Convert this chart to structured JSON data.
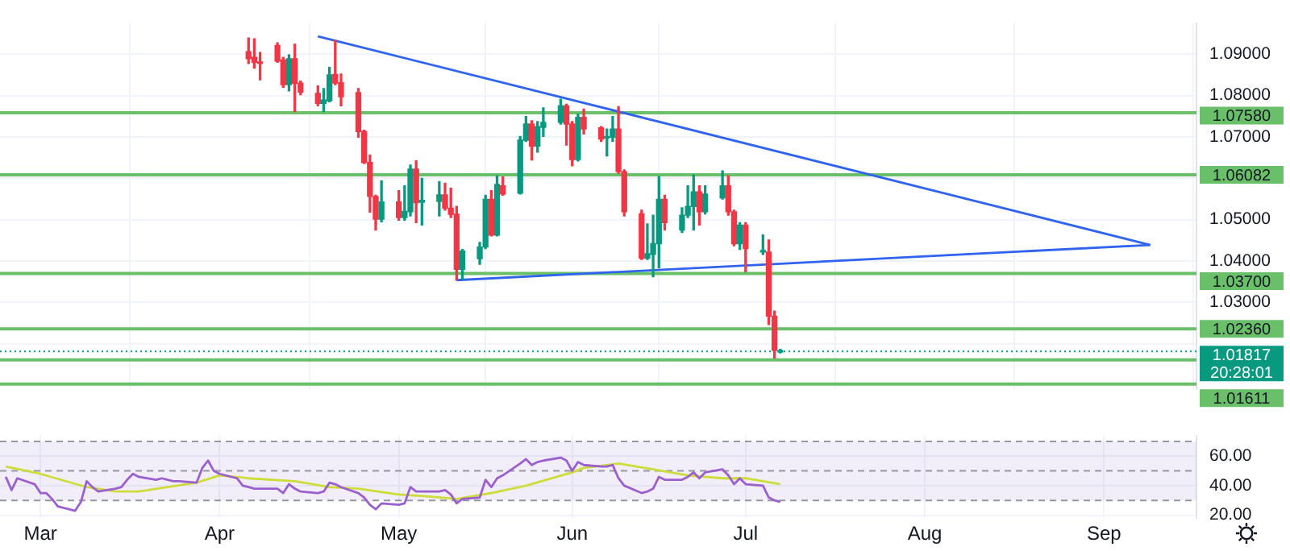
{
  "chart_data": [
    {
      "type": "candlestick",
      "xlim": [
        "--02-22",
        "--09-17"
      ],
      "xticks": [
        {
          "value": "--03-01",
          "label": null
        },
        {
          "value": "--04-01",
          "label": null
        },
        {
          "value": "--05-02",
          "label": null
        },
        {
          "value": "--06-01",
          "label": null
        },
        {
          "value": "--07-01",
          "label": null
        },
        {
          "value": "--08-01",
          "label": null
        },
        {
          "value": "--09-01",
          "label": null
        }
      ],
      "ylim": [
        1.009,
        1.0975
      ],
      "yticks": [
        {
          "value": 1.03,
          "label": "1.03000"
        },
        {
          "value": 1.04,
          "label": "1.04000"
        },
        {
          "value": 1.05,
          "label": "1.05000"
        },
        {
          "value": 1.06,
          "label": null
        },
        {
          "value": 1.07,
          "label": "1.07000"
        },
        {
          "value": 1.08,
          "label": "1.08000"
        },
        {
          "value": 1.09,
          "label": "1.09000"
        },
        {
          "value": 1.02,
          "label": null
        }
      ],
      "tick_labels": "y",
      "grid": true,
      "x": [
        "--04-06",
        "--04-07",
        "--04-08",
        "--04-11",
        "--04-12",
        "--04-13",
        "--04-14",
        "--04-15",
        "--04-18",
        "--04-19",
        "--04-20",
        "--04-21",
        "--04-22",
        "--04-25",
        "--04-26",
        "--04-27",
        "--04-28",
        "--04-29",
        "--05-02",
        "--05-03",
        "--05-04",
        "--05-05",
        "--05-06",
        "--05-09",
        "--05-10",
        "--05-11",
        "--05-12",
        "--05-13",
        "--05-16",
        "--05-17",
        "--05-18",
        "--05-19",
        "--05-20",
        "--05-23",
        "--05-24",
        "--05-25",
        "--05-26",
        "--05-27",
        "--05-30",
        "--05-31",
        "--06-01",
        "--06-02",
        "--06-03",
        "--06-06",
        "--06-07",
        "--06-08",
        "--06-09",
        "--06-10",
        "--06-13",
        "--06-14",
        "--06-15",
        "--06-16",
        "--06-17",
        "--06-20",
        "--06-21",
        "--06-22",
        "--06-23",
        "--06-24",
        "--06-27",
        "--06-28",
        "--06-29",
        "--06-30",
        "--07-01",
        "--07-04",
        "--07-05",
        "--07-06",
        "--07-07"
      ],
      "ohlc": [
        [
          1.0906,
          1.0939,
          1.0877,
          1.0889
        ],
        [
          1.0892,
          1.0937,
          1.0866,
          1.088
        ],
        [
          1.0878,
          1.0904,
          1.0838,
          1.0877
        ],
        [
          1.0921,
          1.0927,
          1.088,
          1.0883
        ],
        [
          1.0886,
          1.0892,
          1.082,
          1.0826
        ],
        [
          1.0826,
          1.0898,
          1.0811,
          1.0889
        ],
        [
          1.0889,
          1.0924,
          1.0761,
          1.0829
        ],
        [
          1.083,
          1.0835,
          1.0802,
          1.0808
        ],
        [
          1.0805,
          1.0823,
          1.0775,
          1.0781
        ],
        [
          1.0781,
          1.0817,
          1.0761,
          1.0789
        ],
        [
          1.0787,
          1.0868,
          1.0785,
          1.085
        ],
        [
          1.0851,
          1.0933,
          1.0826,
          1.083
        ],
        [
          1.0831,
          1.0852,
          1.0775,
          1.0797
        ],
        [
          1.0807,
          1.0817,
          1.0699,
          1.0713
        ],
        [
          1.0713,
          1.0716,
          1.0636,
          1.0638
        ],
        [
          1.0638,
          1.0656,
          1.0518,
          1.0556
        ],
        [
          1.0556,
          1.0559,
          1.0475,
          1.0501
        ],
        [
          1.0501,
          1.0594,
          1.0495,
          1.0543
        ],
        [
          1.0543,
          1.057,
          1.0499,
          1.0505
        ],
        [
          1.0505,
          1.0582,
          1.0499,
          1.052
        ],
        [
          1.0519,
          1.0632,
          1.0509,
          1.0622
        ],
        [
          1.0622,
          1.0642,
          1.0493,
          1.0541
        ],
        [
          1.0542,
          1.06,
          1.0487,
          1.0547
        ],
        [
          1.0544,
          1.0592,
          1.0509,
          1.056
        ],
        [
          1.056,
          1.0588,
          1.0523,
          1.0528
        ],
        [
          1.0528,
          1.0576,
          1.0505,
          1.0513
        ],
        [
          1.0513,
          1.0532,
          1.0354,
          1.038
        ],
        [
          1.038,
          1.0428,
          1.0356,
          1.0424
        ],
        [
          1.0406,
          1.0445,
          1.0392,
          1.0434
        ],
        [
          1.0434,
          1.0559,
          1.043,
          1.0549
        ],
        [
          1.0549,
          1.057,
          1.0461,
          1.0463
        ],
        [
          1.0463,
          1.0606,
          1.0461,
          1.0585
        ],
        [
          1.0582,
          1.0603,
          1.0559,
          1.0562
        ],
        [
          1.0564,
          1.0701,
          1.0562,
          1.0692
        ],
        [
          1.0692,
          1.0749,
          1.0689,
          1.0731
        ],
        [
          1.0731,
          1.0739,
          1.0644,
          1.0678
        ],
        [
          1.0678,
          1.0737,
          1.0663,
          1.0725
        ],
        [
          1.0723,
          1.077,
          1.0701,
          1.0735
        ],
        [
          1.0735,
          1.0791,
          1.0731,
          1.0775
        ],
        [
          1.0775,
          1.0779,
          1.068,
          1.0731
        ],
        [
          1.0731,
          1.0737,
          1.063,
          1.0645
        ],
        [
          1.0645,
          1.0755,
          1.0642,
          1.0747
        ],
        [
          1.0747,
          1.0767,
          1.0707,
          1.0719
        ],
        [
          1.0722,
          1.0725,
          1.0689,
          1.0695
        ],
        [
          1.0697,
          1.0719,
          1.0654,
          1.0699
        ],
        [
          1.0699,
          1.0749,
          1.0689,
          1.0719
        ],
        [
          1.0719,
          1.0773,
          1.0612,
          1.0616
        ],
        [
          1.0616,
          1.062,
          1.0509,
          1.0519
        ],
        [
          1.0514,
          1.0523,
          1.0404,
          1.0407
        ],
        [
          1.0407,
          1.049,
          1.0404,
          1.0418
        ],
        [
          1.0416,
          1.0511,
          1.0362,
          1.0442
        ],
        [
          1.0442,
          1.0604,
          1.0384,
          1.0549
        ],
        [
          1.0549,
          1.0559,
          1.0475,
          1.0493
        ],
        [
          1.0475,
          1.0529,
          1.0469,
          1.0511
        ],
        [
          1.0511,
          1.0582,
          1.0505,
          1.0532
        ],
        [
          1.0532,
          1.0608,
          1.0475,
          1.0567
        ],
        [
          1.0567,
          1.0582,
          1.0487,
          1.0519
        ],
        [
          1.0519,
          1.0582,
          1.0514,
          1.0562
        ],
        [
          1.0553,
          1.0618,
          1.055,
          1.0582
        ],
        [
          1.0582,
          1.0606,
          1.0511,
          1.0519
        ],
        [
          1.0519,
          1.0523,
          1.0437,
          1.0442
        ],
        [
          1.0442,
          1.0493,
          1.0428,
          1.0487
        ],
        [
          1.0487,
          1.0493,
          1.0374,
          1.043
        ],
        [
          1.0422,
          1.0463,
          1.0416,
          1.0422
        ],
        [
          1.0422,
          1.0451,
          1.0247,
          1.0267
        ],
        [
          1.0267,
          1.0279,
          1.0166,
          1.0184
        ],
        [
          1.018,
          1.0187,
          1.0178,
          1.0182
        ]
      ],
      "colors": [
        "#f23645",
        "#f23645",
        "#f23645",
        "#f23645",
        "#f23645",
        "#089981",
        "#f23645",
        "#f23645",
        "#f23645",
        "#089981",
        "#089981",
        "#f23645",
        "#f23645",
        "#f23645",
        "#f23645",
        "#f23645",
        "#f23645",
        "#089981",
        "#f23645",
        "#089981",
        "#089981",
        "#f23645",
        "#089981",
        "#089981",
        "#f23645",
        "#f23645",
        "#f23645",
        "#089981",
        "#089981",
        "#089981",
        "#f23645",
        "#089981",
        "#f23645",
        "#089981",
        "#089981",
        "#f23645",
        "#089981",
        "#089981",
        "#089981",
        "#f23645",
        "#f23645",
        "#089981",
        "#f23645",
        "#f23645",
        "#089981",
        "#089981",
        "#f23645",
        "#f23645",
        "#f23645",
        "#089981",
        "#089981",
        "#089981",
        "#f23645",
        "#089981",
        "#089981",
        "#089981",
        "#f23645",
        "#089981",
        "#089981",
        "#f23645",
        "#f23645",
        "#089981",
        "#f23645",
        "#089981",
        "#f23645",
        "#f23645",
        "#089981"
      ],
      "series": [
        {
          "type": "line",
          "color": "#2f63f0",
          "x": [
            "--04-18",
            "--09-09"
          ],
          "values": [
            1.0943,
            1.0439
          ]
        },
        {
          "type": "line",
          "color": "#2f63f0",
          "x": [
            "--05-12",
            "--09-09"
          ],
          "values": [
            1.0354,
            1.0439
          ]
        }
      ],
      "ref_lines": [
        {
          "axis": "y",
          "value": 1.0758,
          "label": "1.07580",
          "color": "#6abf69"
        },
        {
          "axis": "y",
          "value": 1.06082,
          "label": "1.06082",
          "color": "#6abf69"
        },
        {
          "axis": "y",
          "value": 1.037,
          "label": "1.03700",
          "color": "#6abf69"
        },
        {
          "axis": "y",
          "value": 1.0236,
          "label": "1.02360",
          "color": "#6abf69"
        },
        {
          "axis": "y",
          "value": 1.01817,
          "label": "1.01817",
          "color": "#089981",
          "line_style": "dotted"
        },
        {
          "axis": "y",
          "value": 1.01611,
          "label": "1.01611",
          "color": "#6abf69"
        },
        {
          "axis": "y",
          "value": 1.0103,
          "label": null,
          "color": "#6abf69"
        }
      ],
      "annotations": [
        "20:28:01"
      ]
    },
    {
      "type": "line",
      "xlim": [
        "--02-22",
        "--09-17"
      ],
      "xticks": [
        {
          "value": "--03-01",
          "label": "Mar"
        },
        {
          "value": "--04-01",
          "label": "Apr"
        },
        {
          "value": "--05-02",
          "label": "May"
        },
        {
          "value": "--06-01",
          "label": "Jun"
        },
        {
          "value": "--07-01",
          "label": "Jul"
        },
        {
          "value": "--08-01",
          "label": "Aug"
        },
        {
          "value": "--09-01",
          "label": "Sep"
        }
      ],
      "ylim": [
        18,
        74
      ],
      "yticks": [
        {
          "value": 20,
          "label": "20.00"
        },
        {
          "value": 40,
          "label": "40.00"
        },
        {
          "value": 60,
          "label": "60.00"
        }
      ],
      "grid": true,
      "x": [
        "--02-23",
        "--02-24",
        "--02-25",
        "--02-28",
        "--03-01",
        "--03-02",
        "--03-03",
        "--03-04",
        "--03-07",
        "--03-08",
        "--03-09",
        "--03-10",
        "--03-11",
        "--03-14",
        "--03-15",
        "--03-16",
        "--03-17",
        "--03-18",
        "--03-21",
        "--03-22",
        "--03-23",
        "--03-24",
        "--03-25",
        "--03-28",
        "--03-29",
        "--03-30",
        "--03-31",
        "--04-01",
        "--04-04",
        "--04-05",
        "--04-06",
        "--04-07",
        "--04-08",
        "--04-11",
        "--04-12",
        "--04-13",
        "--04-14",
        "--04-15",
        "--04-18",
        "--04-19",
        "--04-20",
        "--04-21",
        "--04-22",
        "--04-25",
        "--04-26",
        "--04-27",
        "--04-28",
        "--04-29",
        "--05-02",
        "--05-03",
        "--05-04",
        "--05-05",
        "--05-06",
        "--05-09",
        "--05-10",
        "--05-11",
        "--05-12",
        "--05-13",
        "--05-16",
        "--05-17",
        "--05-18",
        "--05-19",
        "--05-20",
        "--05-23",
        "--05-24",
        "--05-25",
        "--05-26",
        "--05-27",
        "--05-30",
        "--05-31",
        "--06-01",
        "--06-02",
        "--06-03",
        "--06-06",
        "--06-07",
        "--06-08",
        "--06-09",
        "--06-10",
        "--06-13",
        "--06-14",
        "--06-15",
        "--06-16",
        "--06-17",
        "--06-20",
        "--06-21",
        "--06-22",
        "--06-23",
        "--06-24",
        "--06-27",
        "--06-28",
        "--06-29",
        "--06-30",
        "--07-01",
        "--07-04",
        "--07-05",
        "--07-06",
        "--07-07"
      ],
      "series": [
        {
          "color": "#9c5fd0",
          "values": [
            46,
            37,
            45,
            41,
            35,
            35,
            31,
            26,
            23,
            29,
            43,
            39,
            36,
            38,
            39,
            44,
            48,
            46,
            44,
            45,
            44,
            43,
            43,
            42,
            52,
            57,
            50,
            48,
            45,
            40,
            39,
            38,
            38,
            38,
            35,
            41,
            38,
            36,
            35,
            36,
            42,
            41,
            39,
            35,
            32,
            27,
            24,
            28,
            27,
            28,
            39,
            36,
            36,
            36,
            37,
            34,
            28,
            31,
            32,
            44,
            39,
            45,
            47,
            55,
            58,
            54,
            56,
            57,
            59,
            57,
            50,
            56,
            54,
            53,
            53,
            54,
            45,
            40,
            35,
            36,
            38,
            46,
            44,
            44,
            46,
            49,
            45,
            49,
            51,
            47,
            41,
            45,
            41,
            40,
            32,
            30,
            29
          ]
        },
        {
          "color": "#cddc39",
          "x": [
            "--02-23",
            "--03-01",
            "--03-09",
            "--03-14",
            "--03-18",
            "--03-23",
            "--03-28",
            "--04-01",
            "--04-06",
            "--04-14",
            "--04-20",
            "--04-25",
            "--05-02",
            "--05-06",
            "--05-12",
            "--05-18",
            "--05-24",
            "--06-01",
            "--06-03",
            "--06-09",
            "--06-15",
            "--06-21",
            "--06-27",
            "--07-01",
            "--07-07"
          ],
          "values": [
            53,
            48,
            39,
            36,
            36,
            39,
            42,
            47,
            45,
            43,
            39,
            38,
            34,
            33,
            31,
            35,
            40,
            49,
            52,
            55,
            51,
            47,
            45,
            45,
            41
          ]
        }
      ],
      "bands": [
        {
          "axis": "y",
          "from": 30,
          "to": 70,
          "color": "#7e57c2"
        }
      ],
      "ref_lines": [
        {
          "axis": "y",
          "value": 70,
          "label": null,
          "color": "#9598a1",
          "line_style": "dashed"
        },
        {
          "axis": "y",
          "value": 50,
          "label": null,
          "color": "#9598a1",
          "line_style": "dashed"
        },
        {
          "axis": "y",
          "value": 30,
          "label": null,
          "color": "#9598a1",
          "line_style": "dashed"
        }
      ]
    }
  ]
}
